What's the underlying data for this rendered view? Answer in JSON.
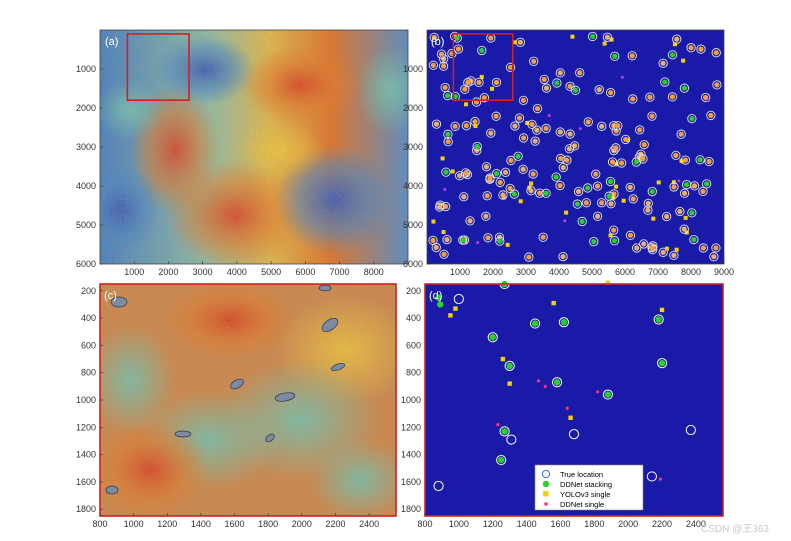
{
  "chart_data": [
    {
      "type": "heatmap",
      "panel_label": "(a)",
      "xlim": [
        0,
        9000
      ],
      "ylim": [
        0,
        6000
      ],
      "x_ticks": [
        1000,
        2000,
        3000,
        4000,
        5000,
        6000,
        7000,
        8000
      ],
      "y_ticks": [
        1000,
        2000,
        3000,
        4000,
        5000,
        6000
      ],
      "y_reversed": true,
      "colormap": "jet",
      "highlight_box": {
        "x": [
          800,
          2600
        ],
        "y": [
          100,
          1800
        ],
        "color": "#cc2222"
      }
    },
    {
      "type": "scatter",
      "panel_label": "(b)",
      "background": "#1a1aa8",
      "xlim": [
        0,
        9000
      ],
      "ylim": [
        0,
        6000
      ],
      "x_ticks": [
        1000,
        2000,
        3000,
        4000,
        5000,
        6000,
        7000,
        8000,
        9000
      ],
      "y_ticks": [
        1000,
        2000,
        3000,
        4000,
        5000,
        6000
      ],
      "y_reversed": true,
      "highlight_box": {
        "x": [
          800,
          2600
        ],
        "y": [
          100,
          1800
        ],
        "color": "#cc2222"
      }
    },
    {
      "type": "heatmap",
      "panel_label": "(c)",
      "xlim": [
        800,
        2560
      ],
      "ylim": [
        150,
        1850
      ],
      "x_ticks": [
        800,
        1000,
        1200,
        1400,
        1600,
        1800,
        2000,
        2200,
        2400
      ],
      "y_ticks": [
        200,
        400,
        600,
        800,
        1000,
        1200,
        1400,
        1600,
        1800
      ],
      "y_reversed": true,
      "colormap": "jet",
      "frame_color": "#cc2222"
    },
    {
      "type": "scatter",
      "panel_label": "(d)",
      "background": "#1a1aa8",
      "xlim": [
        800,
        2560
      ],
      "ylim": [
        150,
        1850
      ],
      "x_ticks": [
        800,
        1000,
        1200,
        1400,
        1600,
        1800,
        2000,
        2200,
        2400
      ],
      "y_ticks": [
        200,
        400,
        600,
        800,
        1000,
        1200,
        1400,
        1600,
        1800
      ],
      "y_reversed": true,
      "frame_color": "#cc2222",
      "legend": {
        "placement": "bottom-center",
        "entries": [
          "True location",
          "DDNet stacking",
          "YOLOv3 single",
          "DDNet single"
        ]
      },
      "series": [
        {
          "name": "True location",
          "marker": "open-circle",
          "color": "#ffffff",
          "x": [
            1000,
            1270,
            1450,
            1620,
            1200,
            1300,
            1580,
            1880,
            2180,
            2200,
            1270,
            2370,
            1250,
            880,
            1680,
            2140,
            1310
          ],
          "y": [
            260,
            150,
            440,
            430,
            540,
            750,
            870,
            960,
            410,
            730,
            1230,
            1220,
            1440,
            1630,
            1250,
            1560,
            1290
          ]
        },
        {
          "name": "DDNet stacking",
          "marker": "filled-circle",
          "color": "#2bd12b",
          "x": [
            880,
            890,
            1200,
            1270,
            1450,
            1620,
            1300,
            1580,
            1880,
            2180,
            2200,
            1270,
            1250
          ],
          "y": [
            250,
            300,
            540,
            150,
            440,
            430,
            750,
            870,
            960,
            410,
            730,
            1230,
            1440
          ]
        },
        {
          "name": "YOLOv3 single",
          "marker": "filled-square",
          "color": "#f2d300",
          "x": [
            980,
            1560,
            1880,
            2200,
            950,
            1300,
            1260,
            1660
          ],
          "y": [
            330,
            290,
            140,
            340,
            380,
            880,
            700,
            1130
          ]
        },
        {
          "name": "DDNet single",
          "marker": "dot",
          "color": "#ff2f7f",
          "x": [
            1470,
            1510,
            1640,
            1230,
            2190,
            1820
          ],
          "y": [
            860,
            900,
            1060,
            1180,
            1580,
            940
          ]
        }
      ]
    }
  ],
  "watermark": "CSDN @王363"
}
